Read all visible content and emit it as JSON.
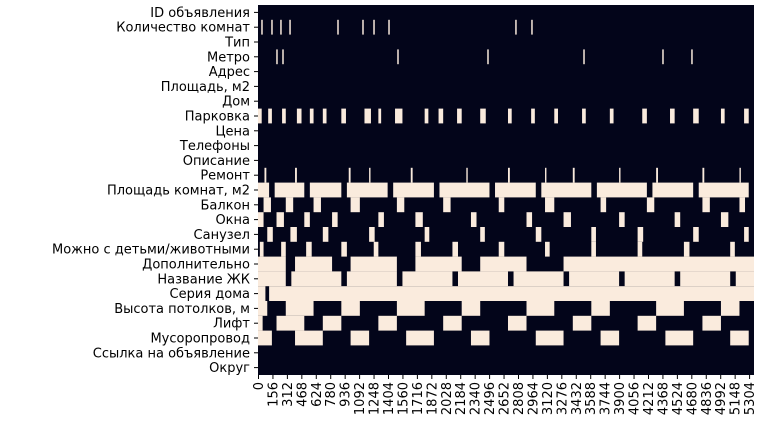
{
  "chart_data": {
    "type": "heatmap",
    "categories": [
      "ID  объявления",
      "Количество комнат",
      "Тип",
      "Метро",
      "Адрес",
      "Площадь, м2",
      "Дом",
      "Парковка",
      "Цена",
      "Телефоны",
      "Описание",
      "Ремонт",
      "Площадь комнат, м2",
      "Балкон",
      "Окна",
      "Санузел",
      "Можно с детьми/животными",
      "Дополнительно",
      "Название ЖК",
      "Серия дома",
      "Высота потолков, м",
      "Лифт",
      "Мусоропровод",
      "Ссылка на объявление",
      "Округ"
    ],
    "xlim": [
      0,
      5357
    ],
    "xticks": [
      0,
      156,
      312,
      468,
      624,
      780,
      936,
      1092,
      1248,
      1404,
      1560,
      1716,
      1872,
      2028,
      2184,
      2340,
      2496,
      2652,
      2808,
      2964,
      3120,
      3276,
      3432,
      3588,
      3744,
      3900,
      4056,
      4212,
      4368,
      4524,
      4680,
      4836,
      4992,
      5148,
      5304
    ],
    "colors": [
      "#03051a",
      "#faebdd"
    ],
    "missing": [
      [],
      [
        [
          35,
          51
        ],
        [
          143,
          159
        ],
        [
          240,
          256
        ],
        [
          338,
          354
        ],
        [
          856,
          872
        ],
        [
          1126,
          1142
        ],
        [
          1245,
          1261
        ],
        [
          1407,
          1423
        ],
        [
          2778,
          2794
        ],
        [
          2951,
          2967
        ]
      ],
      [],
      [
        [
          197,
          213
        ],
        [
          262,
          278
        ],
        [
          1504,
          1520
        ],
        [
          2476,
          2492
        ],
        [
          3513,
          3529
        ],
        [
          4366,
          4382
        ],
        [
          4679,
          4695
        ]
      ],
      [],
      [],
      [],
      [
        [
          0,
          40
        ],
        [
          110,
          150
        ],
        [
          260,
          300
        ],
        [
          420,
          470
        ],
        [
          560,
          600
        ],
        [
          700,
          740
        ],
        [
          900,
          950
        ],
        [
          1150,
          1220
        ],
        [
          1300,
          1330
        ],
        [
          1480,
          1560
        ],
        [
          1800,
          1840
        ],
        [
          1950,
          2000
        ],
        [
          2150,
          2200
        ],
        [
          2400,
          2460
        ],
        [
          2700,
          2740
        ],
        [
          2950,
          2990
        ],
        [
          3200,
          3240
        ],
        [
          3500,
          3540
        ],
        [
          3800,
          3840
        ],
        [
          4150,
          4200
        ],
        [
          4450,
          4500
        ],
        [
          4700,
          4760
        ],
        [
          5000,
          5040
        ],
        [
          5250,
          5300
        ]
      ],
      [],
      [],
      [],
      [
        [
          70,
          90
        ],
        [
          400,
          420
        ],
        [
          980,
          1000
        ],
        [
          1200,
          1215
        ],
        [
          1650,
          1670
        ],
        [
          2250,
          2265
        ],
        [
          2700,
          2720
        ],
        [
          3100,
          3115
        ],
        [
          3400,
          3420
        ],
        [
          3900,
          3915
        ],
        [
          4300,
          4320
        ],
        [
          4800,
          4820
        ],
        [
          5200,
          5215
        ]
      ],
      [
        [
          0,
          120
        ],
        [
          180,
          500
        ],
        [
          560,
          900
        ],
        [
          960,
          1400
        ],
        [
          1460,
          1900
        ],
        [
          1960,
          2500
        ],
        [
          2560,
          3000
        ],
        [
          3060,
          3600
        ],
        [
          3660,
          4200
        ],
        [
          4260,
          4700
        ],
        [
          4760,
          5300
        ]
      ],
      [
        [
          60,
          140
        ],
        [
          300,
          380
        ],
        [
          600,
          680
        ],
        [
          1000,
          1100
        ],
        [
          1500,
          1580
        ],
        [
          2000,
          2080
        ],
        [
          2600,
          2660
        ],
        [
          3100,
          3200
        ],
        [
          3700,
          3760
        ],
        [
          4200,
          4280
        ],
        [
          4800,
          4880
        ],
        [
          5200,
          5260
        ]
      ],
      [
        [
          0,
          60
        ],
        [
          200,
          280
        ],
        [
          500,
          560
        ],
        [
          800,
          860
        ],
        [
          1300,
          1360
        ],
        [
          1700,
          1780
        ],
        [
          2300,
          2360
        ],
        [
          2900,
          2960
        ],
        [
          3300,
          3380
        ],
        [
          3900,
          3960
        ],
        [
          4500,
          4560
        ],
        [
          5000,
          5080
        ]
      ],
      [
        [
          100,
          160
        ],
        [
          350,
          420
        ],
        [
          700,
          760
        ],
        [
          1200,
          1260
        ],
        [
          1800,
          1850
        ],
        [
          2400,
          2450
        ],
        [
          3000,
          3060
        ],
        [
          3600,
          3650
        ],
        [
          4100,
          4160
        ],
        [
          4700,
          4760
        ],
        [
          5250,
          5300
        ]
      ],
      [
        [
          20,
          60
        ],
        [
          250,
          300
        ],
        [
          520,
          580
        ],
        [
          900,
          960
        ],
        [
          1250,
          1300
        ],
        [
          1700,
          1760
        ],
        [
          2100,
          2160
        ],
        [
          2600,
          2660
        ],
        [
          3100,
          3150
        ],
        [
          3600,
          3650
        ],
        [
          4100,
          4150
        ],
        [
          4600,
          4660
        ],
        [
          5100,
          5150
        ]
      ],
      [
        [
          0,
          300
        ],
        [
          400,
          800
        ],
        [
          1000,
          1500
        ],
        [
          1700,
          2200
        ],
        [
          2400,
          2900
        ],
        [
          3300,
          5357
        ]
      ],
      [
        [
          0,
          300
        ],
        [
          360,
          900
        ],
        [
          960,
          1500
        ],
        [
          1560,
          2100
        ],
        [
          2160,
          2700
        ],
        [
          2760,
          3300
        ],
        [
          3360,
          3900
        ],
        [
          3960,
          4500
        ],
        [
          4560,
          5100
        ],
        [
          5160,
          5357
        ]
      ],
      [
        [
          0,
          80
        ],
        [
          120,
          5357
        ]
      ],
      [
        [
          0,
          100
        ],
        [
          300,
          600
        ],
        [
          900,
          1100
        ],
        [
          1500,
          1800
        ],
        [
          2200,
          2400
        ],
        [
          2900,
          3200
        ],
        [
          3600,
          3800
        ],
        [
          4300,
          4600
        ],
        [
          5000,
          5200
        ]
      ],
      [
        [
          0,
          50
        ],
        [
          200,
          500
        ],
        [
          700,
          900
        ],
        [
          1300,
          1500
        ],
        [
          2000,
          2200
        ],
        [
          2700,
          2900
        ],
        [
          3400,
          3600
        ],
        [
          4100,
          4300
        ],
        [
          4800,
          5000
        ]
      ],
      [
        [
          0,
          150
        ],
        [
          400,
          700
        ],
        [
          1000,
          1200
        ],
        [
          1600,
          1900
        ],
        [
          2300,
          2500
        ],
        [
          3000,
          3300
        ],
        [
          3700,
          3900
        ],
        [
          4400,
          4700
        ],
        [
          5100,
          5300
        ]
      ],
      [],
      []
    ]
  }
}
